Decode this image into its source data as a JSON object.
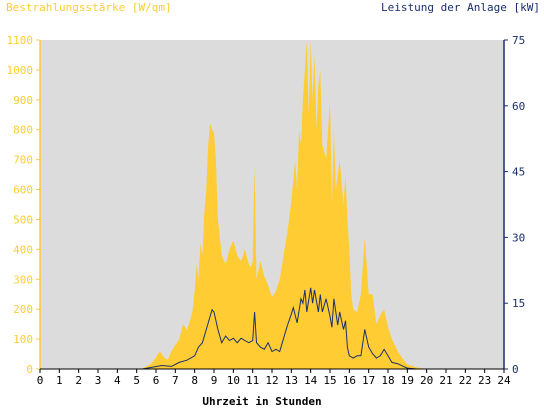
{
  "chart_data": {
    "type": "area",
    "left_axis_title": "Bestrahlungsstärke [W/qm]",
    "right_axis_title": "Leistung der Anlage [kW]",
    "xlabel": "Uhrzeit in Stunden",
    "x_ticks": [
      "0",
      "1",
      "2",
      "3",
      "4",
      "5",
      "6",
      "7",
      "8",
      "9",
      "10",
      "11",
      "12",
      "13",
      "14",
      "15",
      "16",
      "17",
      "18",
      "19",
      "20",
      "21",
      "22",
      "23",
      "24"
    ],
    "xlim": [
      0,
      24
    ],
    "y_left_ticks": [
      "0",
      "100",
      "200",
      "300",
      "400",
      "500",
      "600",
      "700",
      "800",
      "900",
      "1000",
      "1100"
    ],
    "ylim_left": [
      0,
      1100
    ],
    "y_right_ticks": [
      "0",
      "15",
      "30",
      "45",
      "60",
      "75"
    ],
    "ylim_right": [
      0,
      75
    ],
    "grid": false,
    "colors": {
      "plot_bg": "#dcdcdc",
      "irradiance": "#ffcc33",
      "power": "#1a2f6b",
      "left_axis": "#ffcc33",
      "right_axis": "#1a2f6b"
    },
    "series": [
      {
        "name": "Bestrahlungsstärke",
        "axis": "left",
        "style": "area",
        "points": [
          [
            0,
            0
          ],
          [
            5.2,
            0
          ],
          [
            5.5,
            8
          ],
          [
            5.8,
            20
          ],
          [
            6,
            40
          ],
          [
            6.2,
            60
          ],
          [
            6.4,
            40
          ],
          [
            6.6,
            30
          ],
          [
            6.8,
            60
          ],
          [
            7,
            80
          ],
          [
            7.2,
            100
          ],
          [
            7.4,
            150
          ],
          [
            7.6,
            130
          ],
          [
            7.8,
            170
          ],
          [
            7.9,
            200
          ],
          [
            8,
            260
          ],
          [
            8.1,
            350
          ],
          [
            8.2,
            300
          ],
          [
            8.3,
            420
          ],
          [
            8.4,
            380
          ],
          [
            8.5,
            520
          ],
          [
            8.6,
            600
          ],
          [
            8.7,
            750
          ],
          [
            8.8,
            820
          ],
          [
            8.9,
            800
          ],
          [
            9,
            790
          ],
          [
            9.1,
            700
          ],
          [
            9.2,
            500
          ],
          [
            9.4,
            380
          ],
          [
            9.6,
            350
          ],
          [
            9.8,
            400
          ],
          [
            10,
            430
          ],
          [
            10.2,
            380
          ],
          [
            10.4,
            360
          ],
          [
            10.6,
            400
          ],
          [
            10.8,
            350
          ],
          [
            10.9,
            340
          ],
          [
            11,
            360
          ],
          [
            11.1,
            680
          ],
          [
            11.2,
            300
          ],
          [
            11.4,
            360
          ],
          [
            11.6,
            310
          ],
          [
            11.8,
            280
          ],
          [
            12,
            240
          ],
          [
            12.2,
            260
          ],
          [
            12.4,
            300
          ],
          [
            12.6,
            380
          ],
          [
            12.8,
            460
          ],
          [
            13,
            560
          ],
          [
            13.2,
            700
          ],
          [
            13.3,
            600
          ],
          [
            13.4,
            800
          ],
          [
            13.5,
            750
          ],
          [
            13.6,
            900
          ],
          [
            13.7,
            1000
          ],
          [
            13.8,
            1100
          ],
          [
            13.9,
            850
          ],
          [
            14,
            1100
          ],
          [
            14.1,
            900
          ],
          [
            14.2,
            1050
          ],
          [
            14.3,
            800
          ],
          [
            14.4,
            950
          ],
          [
            14.5,
            1000
          ],
          [
            14.6,
            750
          ],
          [
            14.8,
            700
          ],
          [
            15,
            900
          ],
          [
            15.1,
            550
          ],
          [
            15.2,
            800
          ],
          [
            15.3,
            600
          ],
          [
            15.5,
            700
          ],
          [
            15.7,
            550
          ],
          [
            15.8,
            650
          ],
          [
            15.9,
            500
          ],
          [
            16,
            400
          ],
          [
            16.1,
            250
          ],
          [
            16.2,
            200
          ],
          [
            16.4,
            190
          ],
          [
            16.6,
            250
          ],
          [
            16.8,
            440
          ],
          [
            17,
            250
          ],
          [
            17.2,
            250
          ],
          [
            17.4,
            150
          ],
          [
            17.6,
            180
          ],
          [
            17.8,
            200
          ],
          [
            18,
            140
          ],
          [
            18.2,
            100
          ],
          [
            18.5,
            60
          ],
          [
            18.8,
            30
          ],
          [
            19,
            15
          ],
          [
            19.5,
            5
          ],
          [
            20,
            0
          ],
          [
            24,
            0
          ]
        ]
      },
      {
        "name": "Leistung der Anlage",
        "axis": "right",
        "style": "line",
        "points": [
          [
            0,
            0
          ],
          [
            5.3,
            0
          ],
          [
            5.8,
            0.4
          ],
          [
            6.3,
            0.8
          ],
          [
            6.8,
            0.6
          ],
          [
            7.2,
            1.5
          ],
          [
            7.6,
            2
          ],
          [
            8,
            3
          ],
          [
            8.2,
            5
          ],
          [
            8.4,
            6
          ],
          [
            8.6,
            9
          ],
          [
            8.8,
            12
          ],
          [
            8.9,
            13.5
          ],
          [
            9,
            13
          ],
          [
            9.2,
            9
          ],
          [
            9.4,
            6
          ],
          [
            9.6,
            7.5
          ],
          [
            9.8,
            6.5
          ],
          [
            10,
            7
          ],
          [
            10.2,
            6
          ],
          [
            10.4,
            7
          ],
          [
            10.6,
            6.5
          ],
          [
            10.8,
            6
          ],
          [
            11,
            6.5
          ],
          [
            11.1,
            13
          ],
          [
            11.2,
            6
          ],
          [
            11.4,
            5
          ],
          [
            11.6,
            4.5
          ],
          [
            11.8,
            6
          ],
          [
            12,
            4
          ],
          [
            12.2,
            4.5
          ],
          [
            12.4,
            4
          ],
          [
            12.6,
            7
          ],
          [
            12.8,
            10
          ],
          [
            13,
            12.5
          ],
          [
            13.1,
            14
          ],
          [
            13.3,
            10.5
          ],
          [
            13.5,
            16
          ],
          [
            13.6,
            15
          ],
          [
            13.7,
            18
          ],
          [
            13.8,
            13
          ],
          [
            14,
            18.5
          ],
          [
            14.1,
            15
          ],
          [
            14.2,
            18
          ],
          [
            14.4,
            13
          ],
          [
            14.5,
            17
          ],
          [
            14.6,
            13
          ],
          [
            14.8,
            16
          ],
          [
            15,
            12
          ],
          [
            15.1,
            9.5
          ],
          [
            15.2,
            16
          ],
          [
            15.4,
            10
          ],
          [
            15.5,
            13
          ],
          [
            15.7,
            9
          ],
          [
            15.8,
            11
          ],
          [
            15.9,
            5
          ],
          [
            16,
            3
          ],
          [
            16.2,
            2.5
          ],
          [
            16.4,
            3
          ],
          [
            16.6,
            3
          ],
          [
            16.8,
            9
          ],
          [
            17,
            5
          ],
          [
            17.2,
            3.5
          ],
          [
            17.4,
            2.5
          ],
          [
            17.6,
            3
          ],
          [
            17.8,
            4.5
          ],
          [
            18,
            3
          ],
          [
            18.2,
            1.5
          ],
          [
            18.5,
            1.2
          ],
          [
            18.8,
            0.6
          ],
          [
            19,
            0.2
          ],
          [
            19.5,
            0
          ],
          [
            24,
            0
          ]
        ]
      }
    ]
  }
}
